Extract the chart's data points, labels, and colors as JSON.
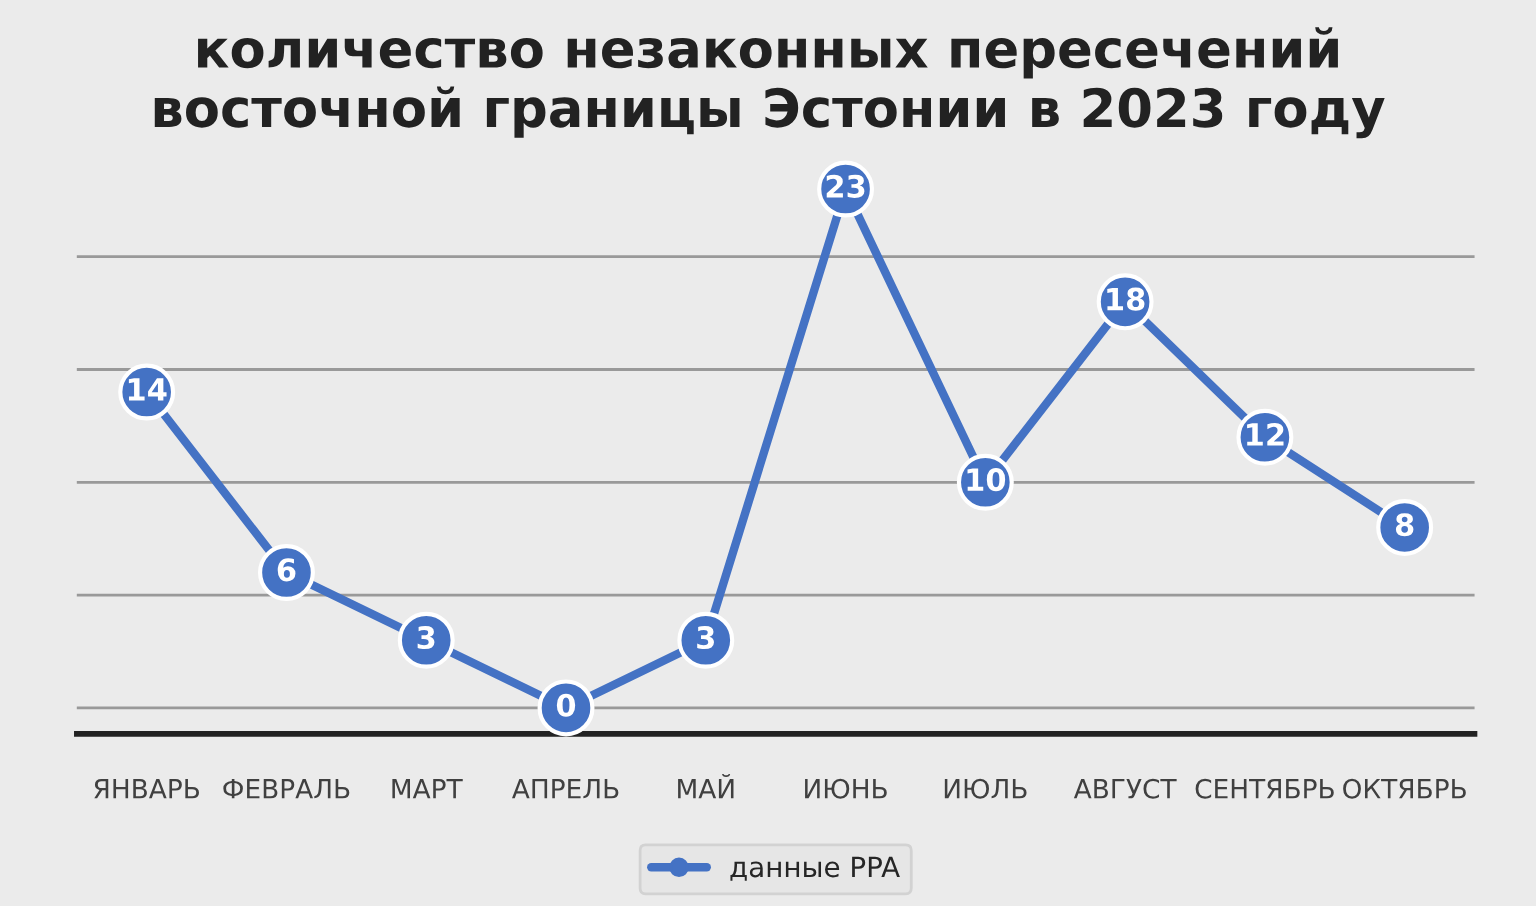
{
  "chart_data": {
    "type": "line",
    "title": "количество незаконных пересечений\nвосточной границы Эстонии в 2023 году",
    "categories": [
      "ЯНВАРЬ",
      "ФЕВРАЛЬ",
      "МАРТ",
      "АПРЕЛЬ",
      "МАЙ",
      "ИЮНЬ",
      "ИЮЛЬ",
      "АВГУСТ",
      "СЕНТЯБРЬ",
      "ОКТЯБРЬ"
    ],
    "series": [
      {
        "name": "данные PPA",
        "color": "#4472c4",
        "values": [
          14,
          6,
          3,
          0,
          3,
          23,
          10,
          18,
          12,
          8
        ]
      }
    ],
    "tick_labels": "x",
    "grid": "y",
    "data_labels": true,
    "marker": "circle",
    "line_style": "solid",
    "legend": "bottom"
  }
}
